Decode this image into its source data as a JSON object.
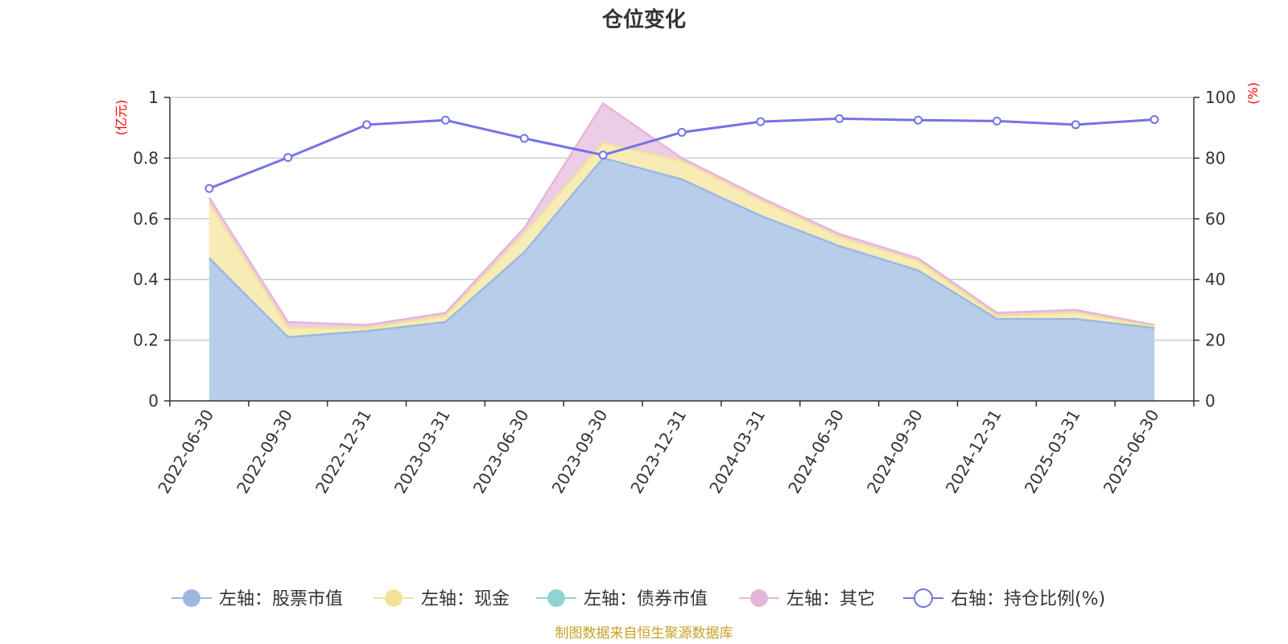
{
  "chart_data": {
    "type": "area",
    "title": "仓位变化",
    "left_axis_unit": "(亿元)",
    "right_axis_unit": "(%)",
    "x": [
      "2022-06-30",
      "2022-09-30",
      "2022-12-31",
      "2023-03-31",
      "2023-06-30",
      "2023-09-30",
      "2023-12-31",
      "2024-03-31",
      "2024-06-30",
      "2024-09-30",
      "2024-12-31",
      "2025-03-31",
      "2025-06-30"
    ],
    "left_ylim": [
      0,
      1
    ],
    "left_yticks": [
      0,
      0.2,
      0.4,
      0.6,
      0.8,
      1
    ],
    "right_ylim": [
      0,
      100
    ],
    "right_yticks": [
      0,
      20,
      40,
      60,
      80,
      100
    ],
    "grid": true,
    "legend_position": "bottom",
    "series": [
      {
        "name": "左轴：股票市值",
        "axis": "left",
        "kind": "stacked-area",
        "color": "#9bb8e0",
        "fill": "#b8cde9",
        "values": [
          0.47,
          0.21,
          0.23,
          0.26,
          0.49,
          0.8,
          0.73,
          0.61,
          0.51,
          0.43,
          0.27,
          0.27,
          0.24
        ]
      },
      {
        "name": "左轴：现金",
        "axis": "left",
        "kind": "stacked-area",
        "color": "#f5e29a",
        "fill": "#f8ecb6",
        "values": [
          0.18,
          0.03,
          0.01,
          0.02,
          0.06,
          0.05,
          0.06,
          0.05,
          0.03,
          0.03,
          0.01,
          0.02,
          0.005
        ]
      },
      {
        "name": "左轴：债券市值",
        "axis": "left",
        "kind": "stacked-area",
        "color": "#8fd3d3",
        "fill": "#b5e3e3",
        "values": [
          0,
          0,
          0,
          0,
          0,
          0,
          0,
          0,
          0,
          0,
          0,
          0,
          0
        ]
      },
      {
        "name": "左轴：其它",
        "axis": "left",
        "kind": "stacked-area",
        "color": "#e6b5da",
        "fill": "#edcde5",
        "values": [
          0.02,
          0.02,
          0.01,
          0.01,
          0.02,
          0.13,
          0.01,
          0.01,
          0.01,
          0.01,
          0.01,
          0.01,
          0.005
        ]
      },
      {
        "name": "右轴：持仓比例(%)",
        "axis": "right",
        "kind": "line",
        "color": "#7472e8",
        "values": [
          70.0,
          80.2,
          91.0,
          92.5,
          86.5,
          81.0,
          88.5,
          92.0,
          93.0,
          92.5,
          92.2,
          91.0,
          92.7
        ]
      }
    ]
  },
  "footer": {
    "source": "制图数据来自恒生聚源数据库"
  }
}
